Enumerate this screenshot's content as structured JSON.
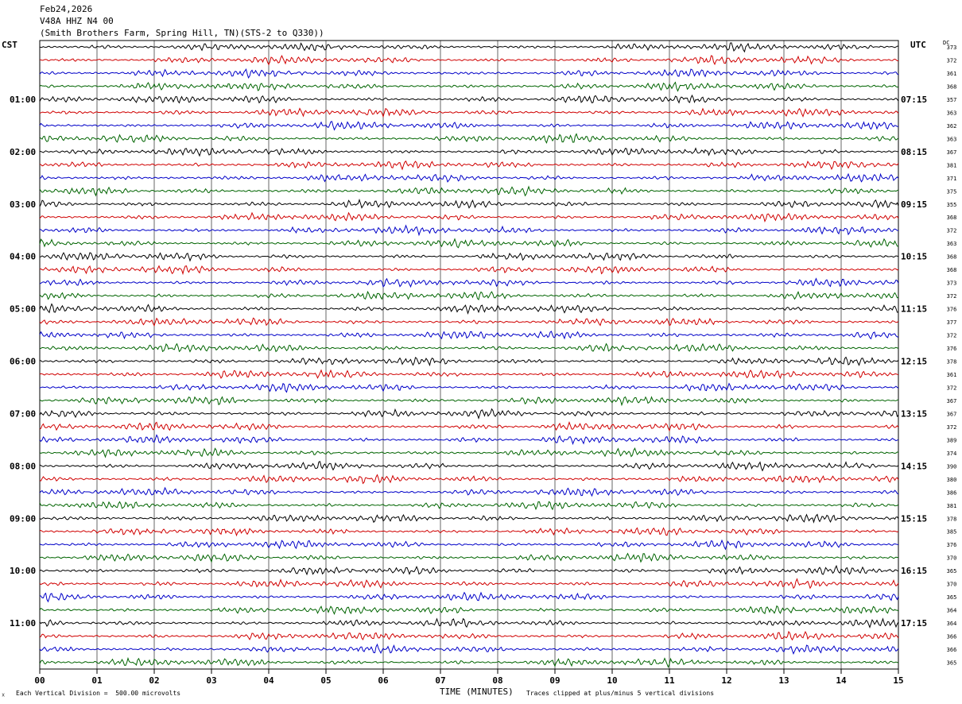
{
  "header": {
    "date": "Feb24,2026",
    "station": "V48A HHZ N4 00",
    "site": "(Smith Brothers Farm, Spring Hill, TN)(STS-2 to Q330))"
  },
  "labels": {
    "left_zone": "CST",
    "right_zone": "UTC",
    "dc_header": "DC"
  },
  "footer": {
    "vertical_division": "Each Vertical Division =  500.00 microvolts",
    "xlabel": "TIME (MINUTES)",
    "clip_note": "Traces clipped at plus/minus 5 vertical divisions",
    "corner_mark": "☓"
  },
  "chart_data": {
    "type": "line",
    "title": "V48A HHZ N4 00",
    "xlabel": "TIME (MINUTES)",
    "ylabel": "",
    "xlim": [
      0,
      15
    ],
    "x_ticks": [
      "00",
      "01",
      "02",
      "03",
      "04",
      "05",
      "06",
      "07",
      "08",
      "09",
      "10",
      "11",
      "12",
      "13",
      "14",
      "15"
    ],
    "grid": true,
    "trace_colors": [
      "#000000",
      "#d00000",
      "#0000c8",
      "#006400"
    ],
    "hours": [
      {
        "cst": "",
        "utc": "",
        "dc": [
          373,
          372,
          361,
          368
        ]
      },
      {
        "cst": "01:00",
        "utc": "07:15",
        "dc": [
          357,
          363,
          362,
          363
        ]
      },
      {
        "cst": "02:00",
        "utc": "08:15",
        "dc": [
          367,
          381,
          371,
          375
        ]
      },
      {
        "cst": "03:00",
        "utc": "09:15",
        "dc": [
          355,
          368,
          372,
          363
        ]
      },
      {
        "cst": "04:00",
        "utc": "10:15",
        "dc": [
          368,
          368,
          373,
          372
        ]
      },
      {
        "cst": "05:00",
        "utc": "11:15",
        "dc": [
          376,
          377,
          372,
          376
        ]
      },
      {
        "cst": "06:00",
        "utc": "12:15",
        "dc": [
          378,
          361,
          372,
          367
        ]
      },
      {
        "cst": "07:00",
        "utc": "13:15",
        "dc": [
          367,
          372,
          389,
          374
        ]
      },
      {
        "cst": "08:00",
        "utc": "14:15",
        "dc": [
          390,
          380,
          386,
          381
        ]
      },
      {
        "cst": "09:00",
        "utc": "15:15",
        "dc": [
          378,
          385,
          376,
          370
        ]
      },
      {
        "cst": "10:00",
        "utc": "16:15",
        "dc": [
          365,
          370,
          365,
          364
        ]
      },
      {
        "cst": "11:00",
        "utc": "17:15",
        "dc": [
          364,
          366,
          366,
          365
        ]
      }
    ]
  }
}
